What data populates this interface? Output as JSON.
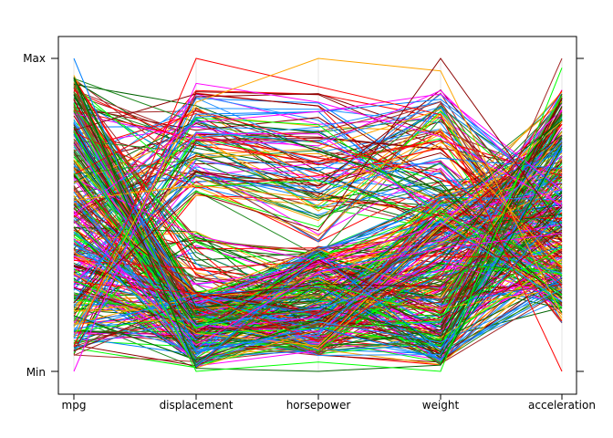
{
  "chart_data": {
    "type": "parallel-coordinates",
    "title": "",
    "axes": [
      "mpg",
      "displacement",
      "horsepower",
      "weight",
      "acceleration"
    ],
    "y_tick_labels": [
      "Min",
      "Max"
    ],
    "scale": "each axis scaled independently from its own minimum (Min) to maximum (Max)",
    "grid": false,
    "legend": "none",
    "line_count_approx": 392,
    "palette": [
      "#0080ff",
      "#ff00ff",
      "#006400",
      "#ff0000",
      "#ffa500",
      "#00ff00",
      "#a52a2a",
      "#8b0000",
      "#1e90ff",
      "#228b22"
    ],
    "highlighted_cases": [
      {
        "mpg": 1.0,
        "displacement": 0.06,
        "horsepower": 0.14,
        "weight": 0.04,
        "acceleration": 0.3
      },
      {
        "mpg": 0.0,
        "displacement": 0.92,
        "horsepower": 0.86,
        "weight": 0.75,
        "acceleration": 0.53
      },
      {
        "mpg": 0.94,
        "displacement": 0.01,
        "horsepower": 0.0,
        "weight": 0.02,
        "acceleration": 0.72
      },
      {
        "mpg": 0.08,
        "displacement": 1.0,
        "horsepower": 0.91,
        "weight": 0.82,
        "acceleration": 0.0
      },
      {
        "mpg": 0.11,
        "displacement": 0.86,
        "horsepower": 1.0,
        "weight": 0.96,
        "acceleration": 0.18
      },
      {
        "mpg": 0.77,
        "displacement": 0.0,
        "horsepower": 0.03,
        "weight": 0.0,
        "acceleration": 0.97
      },
      {
        "mpg": 0.52,
        "displacement": 0.13,
        "horsepower": 0.15,
        "weight": 0.12,
        "acceleration": 1.0
      },
      {
        "mpg": 0.22,
        "displacement": 0.57,
        "horsepower": 0.45,
        "weight": 1.0,
        "acceleration": 0.46
      }
    ],
    "typical_profile": {
      "mpg": [
        0.05,
        0.95
      ],
      "displacement": "bimodal: most near 0.0-0.25, a group near 0.55-0.90",
      "horsepower": "most near 0.05-0.35, a group near 0.45-0.90",
      "weight": "spread 0.0-0.90",
      "acceleration": "spread 0.1-0.9, centered near 0.5"
    }
  }
}
